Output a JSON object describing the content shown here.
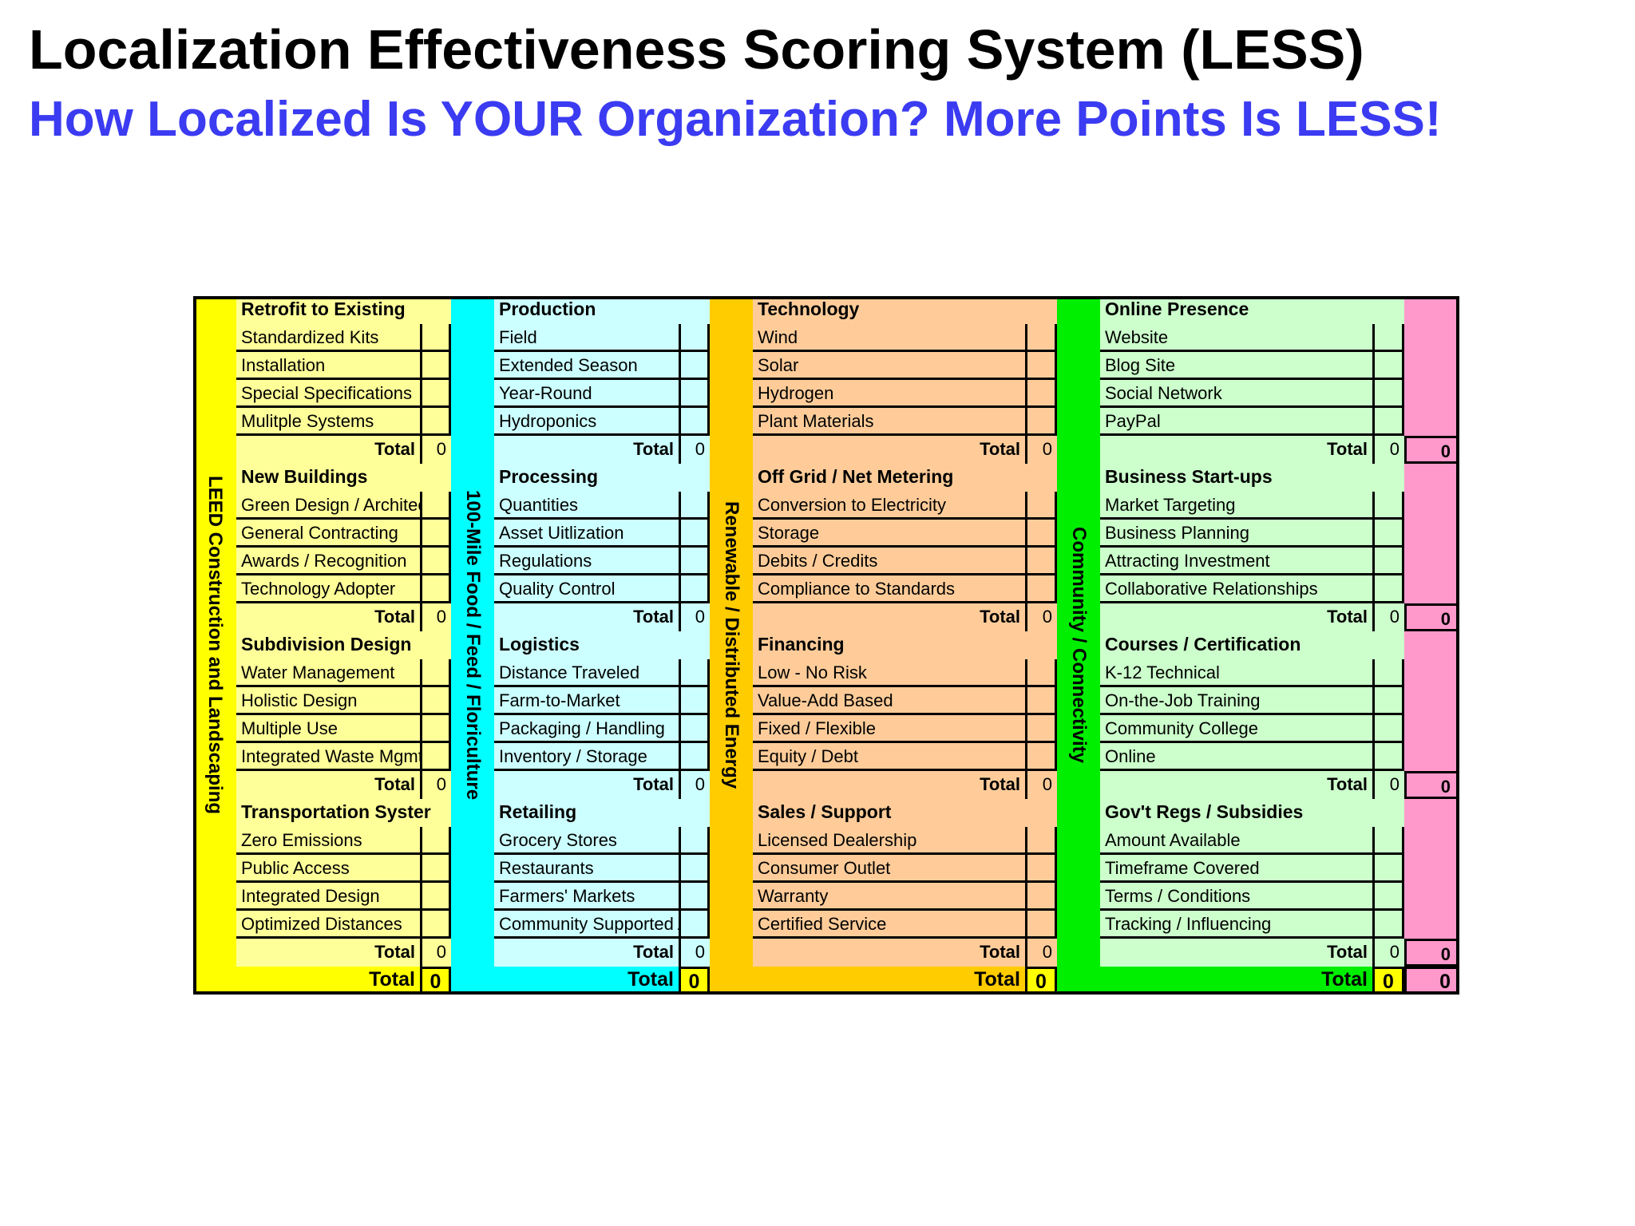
{
  "header": {
    "title": "Localization Effectiveness Scoring System (LESS)",
    "subtitle": "How Localized Is YOUR Organization?  More Points Is LESS!"
  },
  "table": {
    "sections": [
      {
        "label": "LEED Construction and Landscaping",
        "groups": [
          {
            "title": "Retrofit to Existing",
            "items": [
              "Standardized Kits",
              "Installation",
              "Special Specifications",
              "Mulitple Systems"
            ],
            "total_label": "Total",
            "total": 0
          },
          {
            "title": "New Buildings",
            "items": [
              "Green Design / Architectu",
              "General Contracting",
              "Awards / Recognition",
              "Technology Adopter"
            ],
            "total_label": "Total",
            "total": 0
          },
          {
            "title": "Subdivision Design",
            "items": [
              "Water Management",
              "Holistic Design",
              "Multiple Use",
              "Integrated Waste Mgmt"
            ],
            "total_label": "Total",
            "total": 0
          },
          {
            "title": "Transportation Syster",
            "items": [
              "Zero Emissions",
              "Public Access",
              "Integrated Design",
              "Optimized Distances"
            ],
            "total_label": "Total",
            "total": 0
          }
        ],
        "total_label": "Total",
        "total": 0
      },
      {
        "label": "100-Mile Food / Feed / Floriculture",
        "groups": [
          {
            "title": "Production",
            "items": [
              "Field",
              "Extended Season",
              "Year-Round",
              "Hydroponics"
            ],
            "total_label": "Total",
            "total": 0
          },
          {
            "title": "Processing",
            "items": [
              "Quantities",
              "Asset Uitlization",
              "Regulations",
              "Quality Control"
            ],
            "total_label": "Total",
            "total": 0
          },
          {
            "title": "Logistics",
            "items": [
              "Distance Traveled",
              "Farm-to-Market",
              "Packaging / Handling",
              "Inventory / Storage"
            ],
            "total_label": "Total",
            "total": 0
          },
          {
            "title": "Retailing",
            "items": [
              "Grocery Stores",
              "Restaurants",
              "Farmers' Markets",
              "Community Supported Ag"
            ],
            "total_label": "Total",
            "total": 0
          }
        ],
        "total_label": "Total",
        "total": 0
      },
      {
        "label": "Renewable / Distributed Energy",
        "groups": [
          {
            "title": "Technology",
            "items": [
              "Wind",
              "Solar",
              "Hydrogen",
              "Plant Materials"
            ],
            "total_label": "Total",
            "total": 0
          },
          {
            "title": "Off Grid / Net Metering",
            "items": [
              "Conversion to Electricity",
              "Storage",
              "Debits / Credits",
              "Compliance to Standards"
            ],
            "total_label": "Total",
            "total": 0
          },
          {
            "title": "Financing",
            "items": [
              "Low  - No Risk",
              "Value-Add Based",
              "Fixed / Flexible",
              "Equity / Debt"
            ],
            "total_label": "Total",
            "total": 0
          },
          {
            "title": "Sales / Support",
            "items": [
              "Licensed Dealership",
              "Consumer Outlet",
              "Warranty",
              "Certified Service"
            ],
            "total_label": "Total",
            "total": 0
          }
        ],
        "total_label": "Total",
        "total": 0
      },
      {
        "label": "Community / Connectivity",
        "groups": [
          {
            "title": "Online Presence",
            "items": [
              "Website",
              "Blog Site",
              "Social Network",
              "PayPal"
            ],
            "total_label": "Total",
            "total": 0
          },
          {
            "title": "Business Start-ups",
            "items": [
              "Market Targeting",
              "Business Planning",
              "Attracting Investment",
              "Collaborative Relationships"
            ],
            "total_label": "Total",
            "total": 0
          },
          {
            "title": "Courses / Certification",
            "items": [
              "K-12  Technical",
              "On-the-Job Training",
              "Community College",
              "Online"
            ],
            "total_label": "Total",
            "total": 0
          },
          {
            "title": "Gov't Regs / Subsidies",
            "items": [
              "Amount Available",
              "Timeframe Covered",
              "Terms / Conditions",
              "Tracking / Influencing"
            ],
            "total_label": "Total",
            "total": 0
          }
        ],
        "total_label": "Total",
        "total": 0
      }
    ],
    "row_totals": [
      0,
      0,
      0,
      0
    ],
    "grand_total": 0
  }
}
